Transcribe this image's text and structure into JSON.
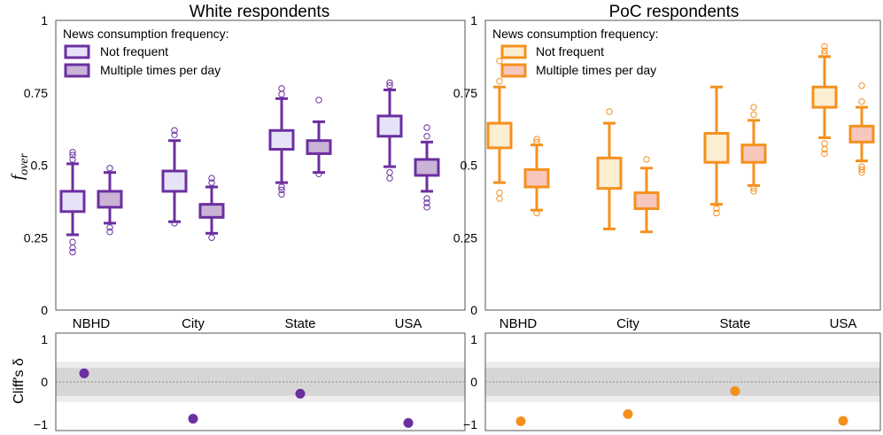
{
  "figure": {
    "ylabel_main": "f",
    "ylabel_sub": "over",
    "ylabel_cliff": "Cliff's δ",
    "colors": {
      "white_line": "#6b2fa0",
      "white_light": "#e6e3f8",
      "white_dark": "#c9b3d6",
      "poc_line": "#f5901e",
      "poc_light": "#fbeed1",
      "poc_dark": "#f7c6bd",
      "band_outer": "#ececec",
      "band_inner": "#d6d6d6"
    }
  },
  "chart_data": [
    {
      "type": "box",
      "id": "white",
      "title": "White respondents",
      "categories": [
        "NBHD",
        "City",
        "State",
        "USA"
      ],
      "ylim": [
        0,
        1
      ],
      "yticks": [
        0,
        0.25,
        0.5,
        0.75,
        1
      ],
      "ytick_labels": [
        "0",
        "0.25",
        "0.5",
        "0.75",
        "1"
      ],
      "legend_title": "News consumption frequency:",
      "series": [
        {
          "name": "Not frequent",
          "boxes": [
            {
              "whislo": 0.26,
              "q1": 0.34,
              "med": 0.38,
              "q3": 0.41,
              "whishi": 0.505,
              "fliers": [
                0.2,
                0.215,
                0.235,
                0.52,
                0.535,
                0.545
              ]
            },
            {
              "whislo": 0.305,
              "q1": 0.41,
              "med": 0.445,
              "q3": 0.48,
              "whishi": 0.585,
              "fliers": [
                0.3,
                0.605,
                0.62
              ]
            },
            {
              "whislo": 0.44,
              "q1": 0.555,
              "med": 0.59,
              "q3": 0.62,
              "whishi": 0.73,
              "fliers": [
                0.4,
                0.415,
                0.425,
                0.745,
                0.765
              ]
            },
            {
              "whislo": 0.495,
              "q1": 0.6,
              "med": 0.635,
              "q3": 0.67,
              "whishi": 0.76,
              "fliers": [
                0.455,
                0.475,
                0.775,
                0.785
              ]
            }
          ]
        },
        {
          "name": "Multiple times per day",
          "boxes": [
            {
              "whislo": 0.3,
              "q1": 0.355,
              "med": 0.385,
              "q3": 0.41,
              "whishi": 0.475,
              "fliers": [
                0.27,
                0.285,
                0.49
              ]
            },
            {
              "whislo": 0.265,
              "q1": 0.32,
              "med": 0.345,
              "q3": 0.365,
              "whishi": 0.425,
              "fliers": [
                0.25,
                0.44,
                0.455
              ]
            },
            {
              "whislo": 0.475,
              "q1": 0.54,
              "med": 0.56,
              "q3": 0.585,
              "whishi": 0.65,
              "fliers": [
                0.47,
                0.725
              ]
            },
            {
              "whislo": 0.41,
              "q1": 0.465,
              "med": 0.49,
              "q3": 0.52,
              "whishi": 0.58,
              "fliers": [
                0.355,
                0.37,
                0.385,
                0.6,
                0.63
              ]
            }
          ]
        }
      ]
    },
    {
      "type": "box",
      "id": "poc",
      "title": "PoC respondents",
      "categories": [
        "NBHD",
        "City",
        "State",
        "USA"
      ],
      "ylim": [
        0,
        1
      ],
      "yticks": [
        0,
        0.25,
        0.5,
        0.75,
        1
      ],
      "ytick_labels": [
        "0",
        "0.25",
        "0.5",
        "0.75",
        "1"
      ],
      "legend_title": "News consumption frequency:",
      "series": [
        {
          "name": "Not frequent",
          "boxes": [
            {
              "whislo": 0.44,
              "q1": 0.56,
              "med": 0.6,
              "q3": 0.645,
              "whishi": 0.77,
              "fliers": [
                0.385,
                0.405,
                0.79,
                0.86
              ]
            },
            {
              "whislo": 0.28,
              "q1": 0.42,
              "med": 0.47,
              "q3": 0.525,
              "whishi": 0.645,
              "fliers": [
                0.685
              ]
            },
            {
              "whislo": 0.365,
              "q1": 0.51,
              "med": 0.56,
              "q3": 0.61,
              "whishi": 0.77,
              "fliers": [
                0.335,
                0.35
              ]
            },
            {
              "whislo": 0.595,
              "q1": 0.7,
              "med": 0.735,
              "q3": 0.77,
              "whishi": 0.875,
              "fliers": [
                0.54,
                0.555,
                0.575,
                0.885,
                0.895,
                0.91
              ]
            }
          ]
        },
        {
          "name": "Multiple times per day",
          "boxes": [
            {
              "whislo": 0.345,
              "q1": 0.425,
              "med": 0.455,
              "q3": 0.485,
              "whishi": 0.57,
              "fliers": [
                0.335,
                0.58,
                0.59
              ]
            },
            {
              "whislo": 0.27,
              "q1": 0.35,
              "med": 0.375,
              "q3": 0.405,
              "whishi": 0.49,
              "fliers": [
                0.52
              ]
            },
            {
              "whislo": 0.43,
              "q1": 0.51,
              "med": 0.54,
              "q3": 0.57,
              "whishi": 0.655,
              "fliers": [
                0.41,
                0.42,
                0.675,
                0.7
              ]
            },
            {
              "whislo": 0.515,
              "q1": 0.58,
              "med": 0.605,
              "q3": 0.635,
              "whishi": 0.7,
              "fliers": [
                0.475,
                0.485,
                0.495,
                0.72,
                0.775
              ]
            }
          ]
        }
      ]
    },
    {
      "type": "scatter",
      "id": "white_cliff",
      "categories": [
        "NBHD",
        "City",
        "State",
        "USA"
      ],
      "values": [
        0.2,
        -0.87,
        -0.28,
        -0.97
      ],
      "ylim": [
        -1.15,
        1.15
      ],
      "yticks": [
        -1,
        0,
        1
      ],
      "ytick_labels": [
        "−1",
        "0",
        "1"
      ],
      "bands": {
        "outer": [
          -0.474,
          0.474
        ],
        "inner": [
          -0.33,
          0.33
        ]
      },
      "zero_line": true
    },
    {
      "type": "scatter",
      "id": "poc_cliff",
      "categories": [
        "NBHD",
        "City",
        "State",
        "USA"
      ],
      "values": [
        -0.93,
        -0.76,
        -0.22,
        -0.92
      ],
      "ylim": [
        -1.15,
        1.15
      ],
      "yticks": [
        -1,
        0,
        1
      ],
      "ytick_labels": [
        "−1",
        "0",
        "1"
      ],
      "bands": {
        "outer": [
          -0.474,
          0.474
        ],
        "inner": [
          -0.33,
          0.33
        ]
      },
      "zero_line": true
    }
  ]
}
